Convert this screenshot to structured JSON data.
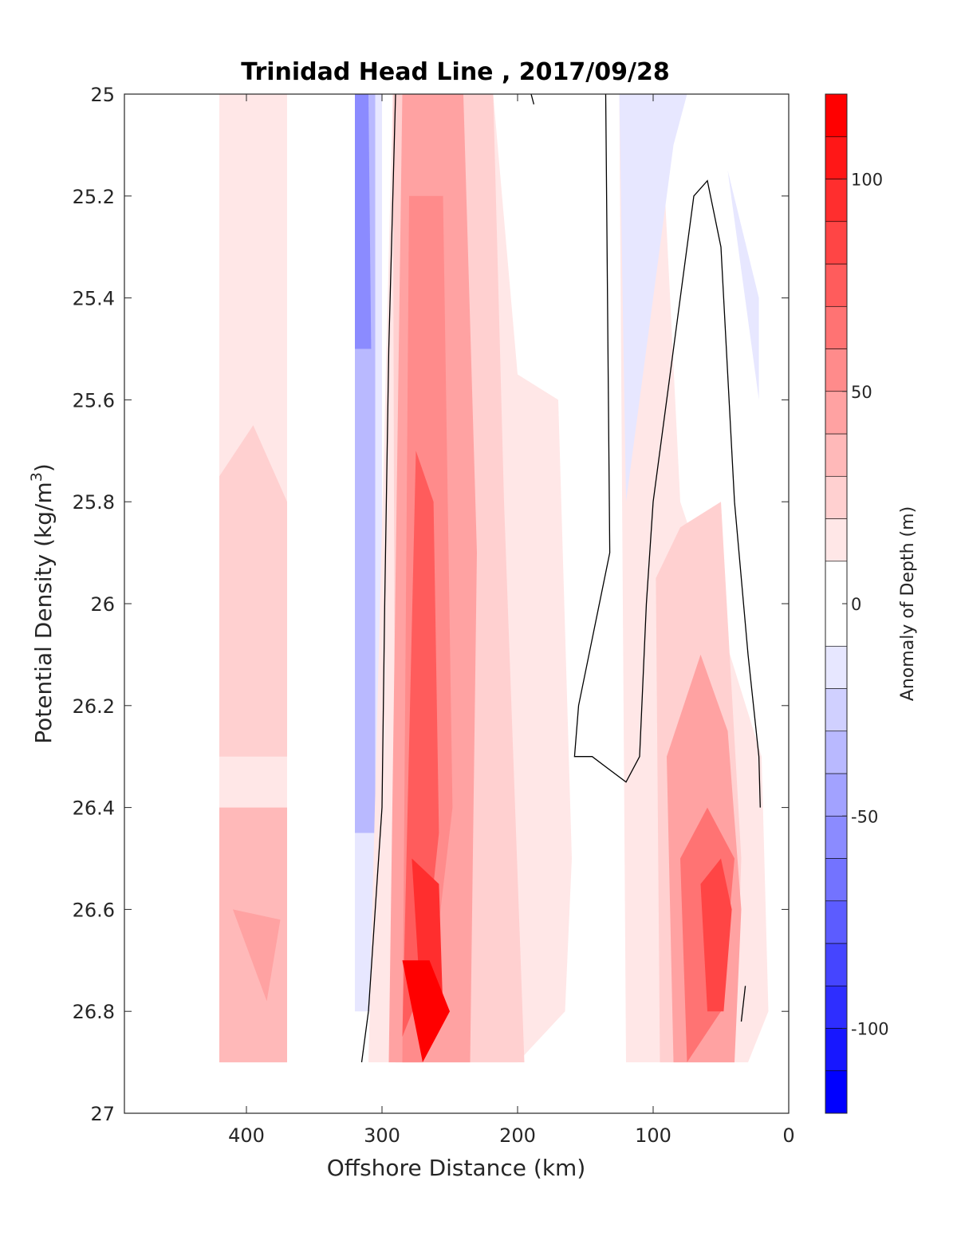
{
  "chart_data": {
    "type": "heatmap",
    "title": "Trinidad Head Line , 2017/09/28",
    "xlabel": "Offshore Distance (km)",
    "ylabel": {
      "text": "Potential Density (kg/m",
      "superscript": "3",
      "suffix": ")"
    },
    "x_axis": {
      "lim": [
        490,
        0
      ],
      "reversed": true,
      "ticks": [
        400,
        300,
        200,
        100,
        0
      ],
      "tick_labels": [
        "400",
        "300",
        "200",
        "100",
        "0"
      ]
    },
    "y_axis": {
      "lim": [
        25,
        27
      ],
      "reversed": true,
      "ticks": [
        25,
        25.2,
        25.4,
        25.6,
        25.8,
        26,
        26.2,
        26.4,
        26.6,
        26.8,
        27
      ],
      "tick_labels": [
        "25",
        "25.2",
        "25.4",
        "25.6",
        "25.8",
        "26",
        "26.2",
        "26.4",
        "26.6",
        "26.8",
        "27"
      ]
    },
    "colorbar": {
      "label": "Anomaly of Depth (m)",
      "lim": [
        -120,
        120
      ],
      "ticks": [
        100,
        50,
        0,
        -50,
        -100
      ],
      "tick_labels": [
        "100",
        "50",
        "0",
        "-50",
        "-100"
      ],
      "levels": [
        -120,
        -110,
        -100,
        -90,
        -80,
        -70,
        -60,
        -50,
        -40,
        -30,
        -20,
        -10,
        10,
        20,
        30,
        40,
        50,
        60,
        70,
        80,
        90,
        100,
        110,
        120
      ],
      "colors": [
        "#0000ff",
        "#1717ff",
        "#2e2eff",
        "#4545ff",
        "#5c5cff",
        "#7373ff",
        "#8b8bff",
        "#a2a2ff",
        "#b9b9ff",
        "#d0d0ff",
        "#e7e7ff",
        "#ffffff",
        "#ffe7e7",
        "#ffd0d0",
        "#ffb9b9",
        "#ffa2a2",
        "#ff8b8b",
        "#ff7373",
        "#ff5c5c",
        "#ff4545",
        "#ff2e2e",
        "#ff1717",
        "#ff0000"
      ]
    },
    "series": [
      {
        "x": [
          420,
          370,
          370,
          420
        ],
        "y": [
          25.0,
          25.0,
          26.9,
          26.9
        ],
        "value": 15
      },
      {
        "x": [
          420,
          395,
          370,
          370,
          420
        ],
        "y": [
          25.75,
          25.65,
          25.8,
          26.3,
          26.3
        ],
        "value": 25
      },
      {
        "x": [
          420,
          370,
          370,
          420
        ],
        "y": [
          26.4,
          26.4,
          26.9,
          26.9
        ],
        "value": 35
      },
      {
        "x": [
          410,
          375,
          385
        ],
        "y": [
          26.6,
          26.62,
          26.78
        ],
        "value": 45
      },
      {
        "x": [
          320,
          300,
          300,
          320
        ],
        "y": [
          25.0,
          25.0,
          26.8,
          26.8
        ],
        "value": -20
      },
      {
        "x": [
          320,
          305,
          305,
          320
        ],
        "y": [
          25.0,
          25.0,
          26.45,
          26.45
        ],
        "value": -40
      },
      {
        "x": [
          320,
          310,
          308,
          320
        ],
        "y": [
          25.0,
          25.0,
          25.5,
          25.5
        ],
        "value": -55
      },
      {
        "x": [
          292,
          218,
          200,
          170,
          160,
          165,
          200,
          310
        ],
        "y": [
          25.0,
          25.0,
          25.55,
          25.6,
          26.5,
          26.8,
          26.9,
          26.9
        ],
        "value": 15
      },
      {
        "x": [
          292,
          218,
          210,
          195,
          230,
          290
        ],
        "y": [
          25.0,
          25.0,
          25.8,
          26.9,
          26.9,
          26.9
        ],
        "value": 25
      },
      {
        "x": [
          285,
          240,
          230,
          235,
          270,
          295
        ],
        "y": [
          25.0,
          25.0,
          25.9,
          26.9,
          26.9,
          26.9
        ],
        "value": 40
      },
      {
        "x": [
          280,
          255,
          248,
          270,
          285
        ],
        "y": [
          25.2,
          25.2,
          26.4,
          26.9,
          26.9
        ],
        "value": 55
      },
      {
        "x": [
          275,
          262,
          258,
          270,
          285
        ],
        "y": [
          25.7,
          25.8,
          26.45,
          26.75,
          26.85
        ],
        "value": 70
      },
      {
        "x": [
          278,
          258,
          255,
          270
        ],
        "y": [
          26.5,
          26.55,
          26.8,
          26.85
        ],
        "value": 90
      },
      {
        "x": [
          285,
          265,
          250,
          270
        ],
        "y": [
          26.7,
          26.7,
          26.8,
          26.9
        ],
        "value": 120
      },
      {
        "x": [
          125,
          95,
          80,
          55,
          20,
          15,
          30,
          40,
          70,
          100,
          120
        ],
        "y": [
          25.0,
          25.0,
          25.8,
          26.0,
          26.3,
          26.8,
          26.9,
          26.9,
          26.9,
          26.9,
          26.9
        ],
        "value": 15
      },
      {
        "x": [
          98,
          80,
          50,
          35,
          40,
          70,
          95
        ],
        "y": [
          25.95,
          25.85,
          25.8,
          26.5,
          26.9,
          26.9,
          26.9
        ],
        "value": 25
      },
      {
        "x": [
          90,
          65,
          45,
          35,
          40,
          70,
          85
        ],
        "y": [
          26.3,
          26.1,
          26.25,
          26.6,
          26.9,
          26.9,
          26.9
        ],
        "value": 40
      },
      {
        "x": [
          80,
          60,
          40,
          50,
          75
        ],
        "y": [
          26.5,
          26.4,
          26.5,
          26.8,
          26.9
        ],
        "value": 60
      },
      {
        "x": [
          65,
          50,
          42,
          48,
          60
        ],
        "y": [
          26.55,
          26.5,
          26.6,
          26.8,
          26.8
        ],
        "value": 85
      },
      {
        "x": [
          125,
          75,
          85,
          120
        ],
        "y": [
          25.0,
          25.0,
          25.1,
          25.8
        ],
        "value": -15
      },
      {
        "x": [
          45,
          22,
          22
        ],
        "y": [
          25.15,
          25.4,
          25.6
        ],
        "value": -20
      }
    ],
    "contour_zero": [
      {
        "x": [
          290,
          295,
          298,
          300,
          305,
          310,
          315
        ],
        "y": [
          25.0,
          25.5,
          26.0,
          26.4,
          26.6,
          26.8,
          26.9
        ]
      },
      {
        "x": [
          135,
          133,
          132,
          155,
          158,
          145,
          120,
          110,
          105,
          100,
          90,
          70,
          60,
          50,
          40,
          30,
          22,
          21
        ],
        "y": [
          25.0,
          25.6,
          25.9,
          26.2,
          26.3,
          26.3,
          26.35,
          26.3,
          26.0,
          25.8,
          25.6,
          25.2,
          25.17,
          25.3,
          25.8,
          26.1,
          26.3,
          26.4
        ]
      },
      {
        "x": [
          190,
          188
        ],
        "y": [
          25.0,
          25.02
        ]
      },
      {
        "x": [
          32,
          35
        ],
        "y": [
          26.75,
          26.82
        ]
      }
    ]
  }
}
